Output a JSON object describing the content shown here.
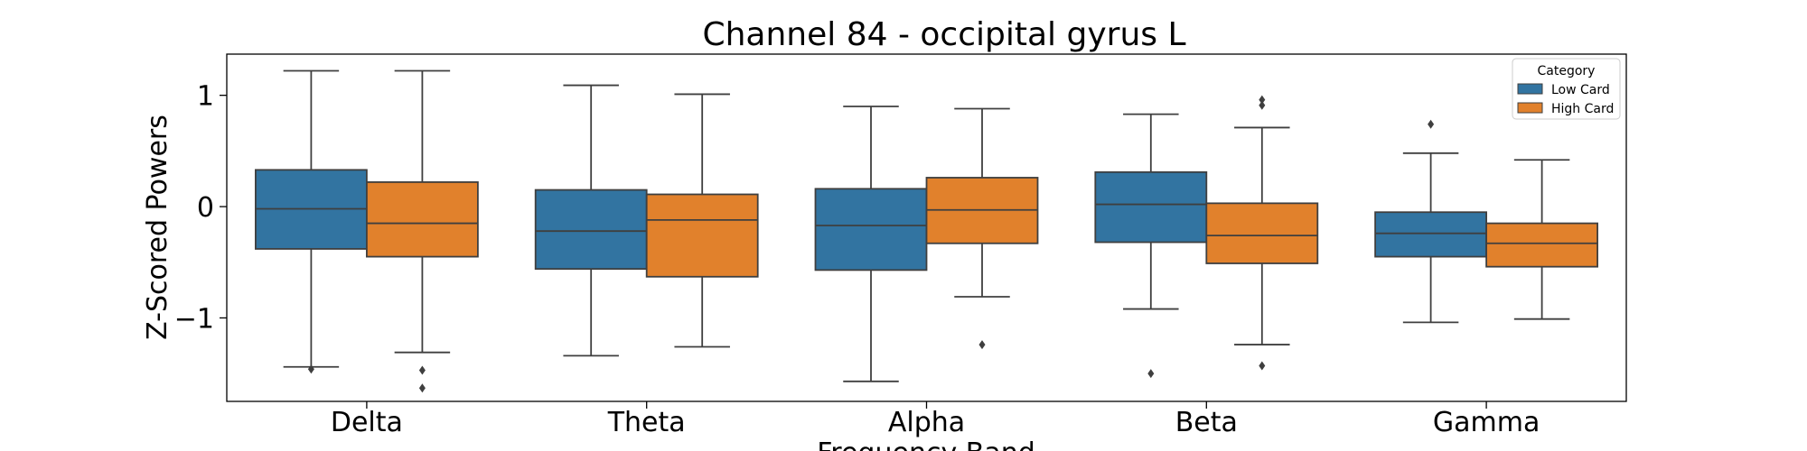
{
  "chart_data": {
    "type": "box",
    "title": "Channel 84 - occipital gyrus L",
    "xlabel": "Frequency Band",
    "ylabel": "Z-Scored Powers",
    "ylim": [
      -1.75,
      1.37
    ],
    "yticks": [
      1,
      0,
      -1
    ],
    "ytick_labels": [
      "1",
      "0",
      "−1"
    ],
    "categories": [
      "Delta",
      "Theta",
      "Alpha",
      "Beta",
      "Gamma"
    ],
    "legend": {
      "title": "Category",
      "placement": "top-right"
    },
    "series": [
      {
        "name": "Low Card",
        "color": "#3274a1",
        "boxes": [
          {
            "whisker_low": -1.44,
            "q1": -0.38,
            "median": -0.02,
            "q3": 0.33,
            "whisker_high": 1.22,
            "outliers": [
              -1.46
            ]
          },
          {
            "whisker_low": -1.34,
            "q1": -0.56,
            "median": -0.22,
            "q3": 0.15,
            "whisker_high": 1.09,
            "outliers": []
          },
          {
            "whisker_low": -1.57,
            "q1": -0.57,
            "median": -0.17,
            "q3": 0.16,
            "whisker_high": 0.9,
            "outliers": []
          },
          {
            "whisker_low": -0.92,
            "q1": -0.32,
            "median": 0.02,
            "q3": 0.31,
            "whisker_high": 0.83,
            "outliers": [
              -1.5
            ]
          },
          {
            "whisker_low": -1.04,
            "q1": -0.45,
            "median": -0.24,
            "q3": -0.05,
            "whisker_high": 0.48,
            "outliers": [
              0.74
            ]
          }
        ]
      },
      {
        "name": "High Card",
        "color": "#e1812c",
        "boxes": [
          {
            "whisker_low": -1.31,
            "q1": -0.45,
            "median": -0.15,
            "q3": 0.22,
            "whisker_high": 1.22,
            "outliers": [
              -1.47,
              -1.63
            ]
          },
          {
            "whisker_low": -1.26,
            "q1": -0.63,
            "median": -0.12,
            "q3": 0.11,
            "whisker_high": 1.01,
            "outliers": []
          },
          {
            "whisker_low": -0.81,
            "q1": -0.33,
            "median": -0.03,
            "q3": 0.26,
            "whisker_high": 0.88,
            "outliers": [
              -1.24
            ]
          },
          {
            "whisker_low": -1.24,
            "q1": -0.51,
            "median": -0.26,
            "q3": 0.03,
            "whisker_high": 0.71,
            "outliers": [
              0.91,
              0.96,
              -1.43
            ]
          },
          {
            "whisker_low": -1.01,
            "q1": -0.54,
            "median": -0.33,
            "q3": -0.15,
            "whisker_high": 0.42,
            "outliers": []
          }
        ]
      }
    ],
    "grid": false
  }
}
